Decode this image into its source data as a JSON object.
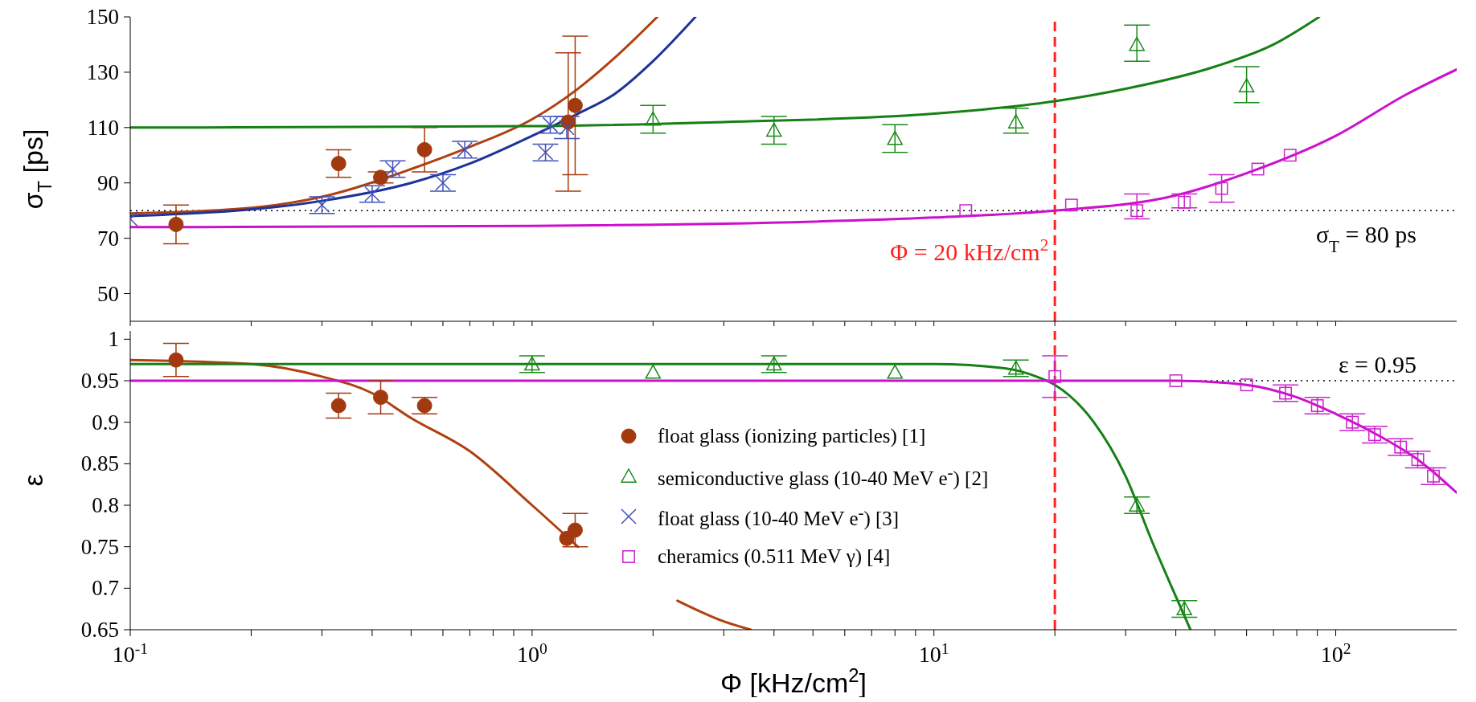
{
  "chart_data": [
    {
      "type": "scatter",
      "ylabel": "σ$_{T}$ [ps]",
      "xlim": [
        0.1,
        200
      ],
      "ylim": [
        40,
        150
      ],
      "log": "x",
      "tick_labels": "y",
      "legend": false,
      "xticks": [
        {
          "value": 0.1,
          "label": null
        },
        {
          "value": 0.2,
          "label": null
        },
        {
          "value": 0.3,
          "label": null
        },
        {
          "value": 0.4,
          "label": null
        },
        {
          "value": 0.5,
          "label": null
        },
        {
          "value": 0.6,
          "label": null
        },
        {
          "value": 0.7,
          "label": null
        },
        {
          "value": 0.8,
          "label": null
        },
        {
          "value": 0.9,
          "label": null
        },
        {
          "value": 1,
          "label": null
        },
        {
          "value": 2,
          "label": null
        },
        {
          "value": 3,
          "label": null
        },
        {
          "value": 4,
          "label": null
        },
        {
          "value": 5,
          "label": null
        },
        {
          "value": 6,
          "label": null
        },
        {
          "value": 7,
          "label": null
        },
        {
          "value": 8,
          "label": null
        },
        {
          "value": 9,
          "label": null
        },
        {
          "value": 10,
          "label": null
        },
        {
          "value": 20,
          "label": null
        },
        {
          "value": 30,
          "label": null
        },
        {
          "value": 40,
          "label": null
        },
        {
          "value": 50,
          "label": null
        },
        {
          "value": 60,
          "label": null
        },
        {
          "value": 70,
          "label": null
        },
        {
          "value": 80,
          "label": null
        },
        {
          "value": 90,
          "label": null
        },
        {
          "value": 100,
          "label": null
        }
      ],
      "yticks": [
        50,
        70,
        90,
        110,
        130,
        150
      ],
      "ref_lines": [
        {
          "axis": "x",
          "value": 20,
          "label": "Φ = 20 kHz/cm$^{2}$",
          "color": "#ff2020",
          "line_style": "dashed"
        },
        {
          "axis": "y",
          "value": 80,
          "label": "σ$_{T}$ = 80 ps",
          "color": "#000000",
          "line_style": "dotted"
        }
      ],
      "series": [
        {
          "marker": "circle",
          "color": "#a33a0f",
          "x": [
            0.13,
            0.33,
            0.42,
            0.54,
            1.23,
            1.28
          ],
          "values": [
            75,
            97,
            92,
            102,
            112,
            118
          ],
          "errors": [
            [
              68,
              82
            ],
            [
              92,
              102
            ],
            [
              90,
              94
            ],
            [
              94,
              110
            ],
            [
              87,
              137
            ],
            [
              93,
              143
            ]
          ]
        },
        {
          "marker": "triangle",
          "color": "#1a8a1a",
          "x": [
            2,
            4,
            8,
            16,
            32,
            60
          ],
          "values": [
            113,
            109,
            106,
            112,
            140,
            125
          ],
          "errors": [
            [
              108,
              118
            ],
            [
              104,
              114
            ],
            [
              101,
              111
            ],
            [
              108,
              117
            ],
            [
              134,
              147
            ],
            [
              119,
              132
            ]
          ]
        },
        {
          "marker": "cross",
          "color": "#4050b8",
          "x": [
            0.1,
            0.3,
            0.4,
            0.45,
            0.6,
            0.68,
            1.08,
            1.11,
            1.22
          ],
          "values": [
            77,
            82,
            86,
            95,
            90,
            102,
            101,
            111,
            110
          ],
          "errors": [
            null,
            [
              79,
              85
            ],
            [
              83,
              89
            ],
            [
              92,
              98
            ],
            [
              87,
              93
            ],
            [
              99,
              105
            ],
            [
              98,
              104
            ],
            [
              108,
              114
            ],
            [
              106,
              114
            ]
          ]
        },
        {
          "marker": "square",
          "color": "#cc22cc",
          "x": [
            12,
            22,
            32,
            42,
            52,
            64,
            77
          ],
          "values": [
            80,
            82,
            80,
            83,
            88,
            95,
            100
          ],
          "errors": [
            null,
            null,
            [
              77,
              86
            ],
            [
              81,
              86
            ],
            [
              83,
              93
            ],
            null,
            null
          ]
        },
        {
          "type": "line",
          "marker": "none",
          "line_style": "solid",
          "color": "#b04010",
          "x": [
            0.1,
            0.2,
            0.3,
            0.5,
            0.7,
            1,
            1.3,
            1.6,
            2.05
          ],
          "values": [
            79,
            81,
            85,
            95,
            103,
            113,
            124,
            135,
            150
          ]
        },
        {
          "type": "line",
          "marker": "none",
          "line_style": "solid",
          "color": "#1c3399",
          "x": [
            0.1,
            0.3,
            0.5,
            0.7,
            1,
            1.3,
            1.6,
            2,
            2.55
          ],
          "values": [
            78,
            83.5,
            90,
            97,
            107,
            115,
            122,
            134,
            150
          ]
        },
        {
          "type": "line",
          "marker": "none",
          "line_style": "solid",
          "color": "#168016",
          "x": [
            0.1,
            1,
            3,
            10,
            20,
            30,
            50,
            70,
            91
          ],
          "values": [
            110,
            110.5,
            112,
            115,
            119.5,
            124,
            132,
            140,
            150
          ]
        },
        {
          "type": "line",
          "marker": "none",
          "line_style": "solid",
          "color": "#cc11cc",
          "x": [
            0.1,
            1,
            5,
            10,
            20,
            40,
            60,
            100,
            150,
            200
          ],
          "values": [
            74,
            74.5,
            76,
            77.5,
            80,
            85.5,
            93.5,
            107,
            122,
            131
          ]
        }
      ]
    },
    {
      "type": "scatter",
      "xlabel": "Φ [kHz/cm$^{2}$]",
      "ylabel": "ε",
      "xlim": [
        0.1,
        200
      ],
      "ylim": [
        0.65,
        1.01
      ],
      "log": "x",
      "legend": "bottom",
      "xticks": [
        {
          "value": 0.1,
          "label": "10$^{-1}$"
        },
        {
          "value": 0.2,
          "label": null
        },
        {
          "value": 0.3,
          "label": null
        },
        {
          "value": 0.4,
          "label": null
        },
        {
          "value": 0.5,
          "label": null
        },
        {
          "value": 0.6,
          "label": null
        },
        {
          "value": 0.7,
          "label": null
        },
        {
          "value": 0.8,
          "label": null
        },
        {
          "value": 0.9,
          "label": null
        },
        {
          "value": 1,
          "label": "10$^{0}$"
        },
        {
          "value": 2,
          "label": null
        },
        {
          "value": 3,
          "label": null
        },
        {
          "value": 4,
          "label": null
        },
        {
          "value": 5,
          "label": null
        },
        {
          "value": 6,
          "label": null
        },
        {
          "value": 7,
          "label": null
        },
        {
          "value": 8,
          "label": null
        },
        {
          "value": 9,
          "label": null
        },
        {
          "value": 10,
          "label": "10$^{1}$"
        },
        {
          "value": 20,
          "label": null
        },
        {
          "value": 30,
          "label": null
        },
        {
          "value": 40,
          "label": null
        },
        {
          "value": 50,
          "label": null
        },
        {
          "value": 60,
          "label": null
        },
        {
          "value": 70,
          "label": null
        },
        {
          "value": 80,
          "label": null
        },
        {
          "value": 90,
          "label": null
        },
        {
          "value": 100,
          "label": "10$^{2}$"
        }
      ],
      "yticks": [
        0.65,
        0.7,
        0.75,
        0.8,
        0.85,
        0.9,
        0.95,
        1
      ],
      "ref_lines": [
        {
          "axis": "x",
          "value": 20,
          "color": "#ff2020",
          "line_style": "dashed"
        },
        {
          "axis": "y",
          "value": 0.95,
          "label": "ε = 0.95",
          "color": "#000000",
          "line_style": "dotted"
        }
      ],
      "series": [
        {
          "name": "float glass (ionizing particles) [1]",
          "marker": "circle",
          "color": "#a33a0f",
          "x": [
            0.13,
            0.33,
            0.42,
            0.54,
            1.22,
            1.28
          ],
          "values": [
            0.975,
            0.92,
            0.93,
            0.92,
            0.76,
            0.77
          ],
          "errors": [
            [
              0.955,
              0.995
            ],
            [
              0.905,
              0.935
            ],
            [
              0.91,
              0.95
            ],
            [
              0.91,
              0.93
            ],
            null,
            [
              0.75,
              0.79
            ]
          ]
        },
        {
          "name": "semiconductive glass (10-40 MeV e$^{-}$) [2]",
          "marker": "triangle",
          "color": "#1a8a1a",
          "x": [
            1,
            2,
            4,
            8,
            16,
            32,
            42
          ],
          "values": [
            0.97,
            0.96,
            0.97,
            0.96,
            0.965,
            0.8,
            0.675
          ],
          "errors": [
            [
              0.96,
              0.98
            ],
            null,
            [
              0.96,
              0.98
            ],
            null,
            [
              0.955,
              0.975
            ],
            [
              0.79,
              0.81
            ],
            [
              0.665,
              0.685
            ]
          ]
        },
        {
          "name": "float glass (10-40 MeV e$^{-}$) [3]",
          "marker": "cross",
          "color": "#4050b8"
        },
        {
          "name": "cheramics (0.511 MeV γ) [4]",
          "marker": "square",
          "color": "#cc22cc",
          "x": [
            20,
            40,
            60,
            75,
            90,
            110,
            125,
            145,
            160,
            175
          ],
          "values": [
            0.955,
            0.95,
            0.945,
            0.935,
            0.92,
            0.9,
            0.885,
            0.87,
            0.855,
            0.835
          ],
          "errors": [
            [
              0.93,
              0.98
            ],
            null,
            null,
            [
              0.925,
              0.945
            ],
            [
              0.91,
              0.93
            ],
            [
              0.89,
              0.91
            ],
            [
              0.875,
              0.895
            ],
            [
              0.86,
              0.88
            ],
            [
              0.845,
              0.865
            ],
            [
              0.825,
              0.845
            ]
          ]
        },
        {
          "type": "line",
          "marker": "none",
          "line_style": "solid",
          "color": "#b04010",
          "x": [
            0.1,
            0.2,
            0.3,
            0.4,
            0.5,
            0.7,
            1,
            1.3,
            1.6,
            2.3,
            3,
            3.5
          ],
          "values": [
            0.975,
            0.97,
            0.955,
            0.935,
            0.905,
            0.865,
            0.8,
            0.75,
            null,
            0.685,
            0.66,
            0.65
          ]
        },
        {
          "type": "line",
          "marker": "none",
          "line_style": "solid",
          "color": "#168016",
          "x": [
            0.1,
            10,
            15,
            18,
            20,
            25,
            30,
            35,
            40,
            43.5
          ],
          "values": [
            0.97,
            0.97,
            0.965,
            0.955,
            0.945,
            0.9,
            0.835,
            0.755,
            0.69,
            0.65
          ]
        },
        {
          "type": "line",
          "marker": "none",
          "line_style": "solid",
          "color": "#cc11cc",
          "x": [
            0.1,
            40,
            60,
            80,
            100,
            130,
            160,
            200
          ],
          "values": [
            0.95,
            0.95,
            0.945,
            0.93,
            0.91,
            0.882,
            0.855,
            0.815
          ]
        }
      ]
    }
  ]
}
